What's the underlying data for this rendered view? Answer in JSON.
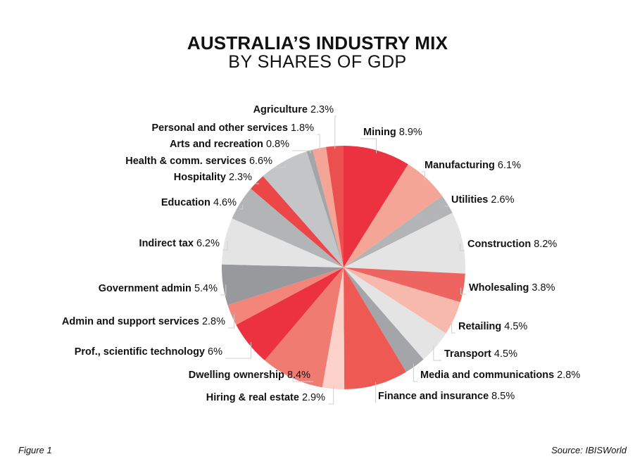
{
  "chart_data": {
    "type": "pie",
    "title": "AUSTRALIA’S INDUSTRY MIX",
    "subtitle": "BY SHARES OF GDP",
    "slices": [
      {
        "label": "Mining",
        "value": 8.9,
        "display": "8.9%",
        "color": "#ec3140"
      },
      {
        "label": "Manufacturing",
        "value": 6.1,
        "display": "6.1%",
        "color": "#f4a595"
      },
      {
        "label": "Utilities",
        "value": 2.6,
        "display": "2.6%",
        "color": "#b3b4b6"
      },
      {
        "label": "Construction",
        "value": 8.2,
        "display": "8.2%",
        "color": "#e4e4e5"
      },
      {
        "label": "Wholesaling",
        "value": 3.8,
        "display": "3.8%",
        "color": "#ee6460"
      },
      {
        "label": "Retailing",
        "value": 4.5,
        "display": "4.5%",
        "color": "#f8b9ad"
      },
      {
        "label": "Transport",
        "value": 4.5,
        "display": "4.5%",
        "color": "#e4e4e5"
      },
      {
        "label": "Media and communications",
        "value": 2.8,
        "display": "2.8%",
        "color": "#a4a5a8"
      },
      {
        "label": "Finance and insurance",
        "value": 8.5,
        "display": "8.5%",
        "color": "#ee5a53"
      },
      {
        "label": "Hiring & real estate",
        "value": 2.9,
        "display": "2.9%",
        "color": "#fbd1c9"
      },
      {
        "label": "Dwelling ownership",
        "value": 8.4,
        "display": "8.4%",
        "color": "#f07b70"
      },
      {
        "label": "Prof., scientific technology",
        "value": 6.0,
        "display": "6%",
        "color": "#ec3140"
      },
      {
        "label": "Admin and support services",
        "value": 2.8,
        "display": "2.8%",
        "color": "#f4857a"
      },
      {
        "label": "Government admin",
        "value": 5.4,
        "display": "5.4%",
        "color": "#98999c"
      },
      {
        "label": "Indirect tax",
        "value": 6.2,
        "display": "6.2%",
        "color": "#e4e4e5"
      },
      {
        "label": "Education",
        "value": 4.6,
        "display": "4.6%",
        "color": "#b3b4b6"
      },
      {
        "label": "Hospitality",
        "value": 2.3,
        "display": "2.3%",
        "color": "#ec4649"
      },
      {
        "label": "Health & comm. services",
        "value": 6.6,
        "display": "6.6%",
        "color": "#c4c5c7"
      },
      {
        "label": "Arts and recreation",
        "value": 0.8,
        "display": "0.8%",
        "color": "#a4a5a8"
      },
      {
        "label": "Personal and other services",
        "value": 1.8,
        "display": "1.8%",
        "color": "#f4a595"
      },
      {
        "label": "Agriculture",
        "value": 2.3,
        "display": "2.3%",
        "color": "#ec4f4f"
      }
    ]
  },
  "footer": {
    "figure": "Figure 1",
    "source": "Source: IBISWorld"
  }
}
